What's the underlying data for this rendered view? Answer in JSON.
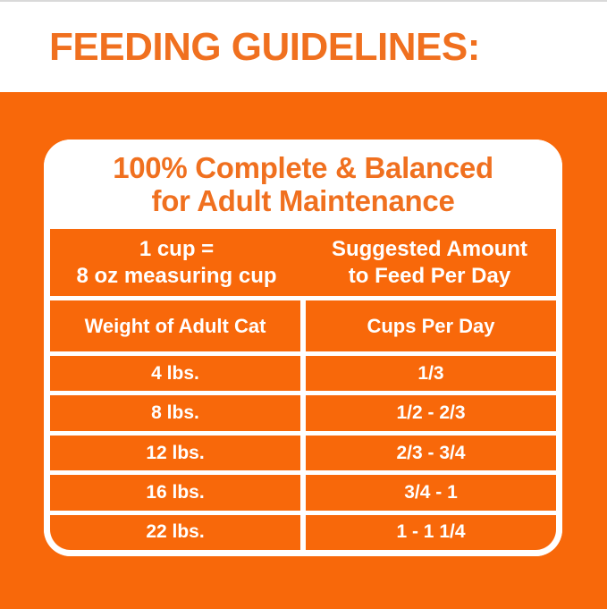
{
  "page": {
    "title": "FEEDING GUIDELINES:",
    "colors": {
      "orange_background": "#F8680A",
      "orange_text": "#F0701F",
      "white": "#FFFFFF",
      "top_edge_gray": "#D9D9D9"
    }
  },
  "card": {
    "header": {
      "line1": "100% Complete & Balanced",
      "line2": "for Adult Maintenance"
    },
    "intro_row": {
      "left_line1": "1 cup =",
      "left_line2": "8 oz measuring cup",
      "right_line1": "Suggested Amount",
      "right_line2": "to Feed Per Day"
    },
    "column_headers": {
      "left": "Weight of Adult Cat",
      "right": "Cups Per Day"
    },
    "rows": [
      {
        "weight": "4 lbs.",
        "cups": "1/3"
      },
      {
        "weight": "8 lbs.",
        "cups": "1/2 - 2/3"
      },
      {
        "weight": "12 lbs.",
        "cups": "2/3 - 3/4"
      },
      {
        "weight": "16 lbs.",
        "cups": "3/4 - 1"
      },
      {
        "weight": "22 lbs.",
        "cups": "1 - 1 1/4"
      }
    ]
  },
  "chart_data": {
    "type": "table",
    "title": "Feeding Guidelines - 100% Complete & Balanced for Adult Maintenance",
    "note": "1 cup = 8 oz measuring cup; amounts are suggested amount to feed per day",
    "columns": [
      "Weight of Adult Cat",
      "Cups Per Day"
    ],
    "rows": [
      [
        "4 lbs.",
        "1/3"
      ],
      [
        "8 lbs.",
        "1/2 - 2/3"
      ],
      [
        "12 lbs.",
        "2/3 - 3/4"
      ],
      [
        "16 lbs.",
        "3/4 - 1"
      ],
      [
        "22 lbs.",
        "1 - 1 1/4"
      ]
    ]
  }
}
